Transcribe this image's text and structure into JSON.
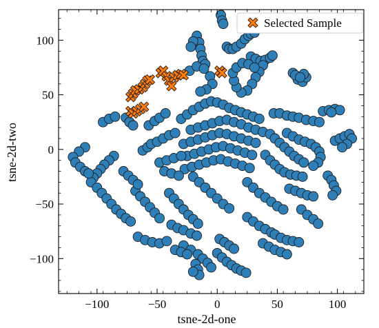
{
  "chart_data": {
    "type": "scatter",
    "title": "",
    "xlabel": "tsne-2d-one",
    "ylabel": "tsne-2d-two",
    "xlim": [
      -132,
      122
    ],
    "ylim": [
      -132,
      128
    ],
    "xticks": [
      -100,
      -50,
      0,
      50,
      100
    ],
    "yticks": [
      -100,
      -50,
      0,
      50,
      100
    ],
    "grid": false,
    "legend_position": "top-right",
    "colors": {
      "background_points": "#2e7fb8",
      "selected": "#ff7f0e",
      "edge": "#1f1f1f"
    },
    "legend": [
      {
        "marker": "x",
        "label": "Selected Sample"
      }
    ],
    "series": [
      {
        "marker": "circle",
        "points": [
          [
            3,
            123
          ],
          [
            4,
            118
          ],
          [
            5,
            115
          ],
          [
            -17,
            104
          ],
          [
            -15,
            98
          ],
          [
            -14,
            92
          ],
          [
            -13,
            86
          ],
          [
            -12,
            81
          ],
          [
            -10,
            78
          ],
          [
            -20,
            99
          ],
          [
            -22,
            94
          ],
          [
            8,
            94
          ],
          [
            10,
            92
          ],
          [
            13,
            92
          ],
          [
            16,
            94
          ],
          [
            20,
            97
          ],
          [
            23,
            101
          ],
          [
            26,
            104
          ],
          [
            28,
            106
          ],
          [
            31,
            107
          ],
          [
            28,
            85
          ],
          [
            32,
            83
          ],
          [
            36,
            81
          ],
          [
            40,
            82
          ],
          [
            44,
            84
          ],
          [
            46,
            86
          ],
          [
            38,
            77
          ],
          [
            35,
            71
          ],
          [
            32,
            66
          ],
          [
            29,
            60
          ],
          [
            25,
            54
          ],
          [
            20,
            52
          ],
          [
            16,
            57
          ],
          [
            14,
            63
          ],
          [
            13,
            70
          ],
          [
            16,
            75
          ],
          [
            21,
            79
          ],
          [
            26,
            78
          ],
          [
            31,
            75
          ],
          [
            63,
            70
          ],
          [
            67,
            64
          ],
          [
            71,
            62
          ],
          [
            74,
            66
          ],
          [
            72,
            69
          ],
          [
            65,
            68
          ],
          [
            69,
            66
          ],
          [
            -23,
            72
          ],
          [
            -17,
            76
          ],
          [
            -11,
            74
          ],
          [
            -6,
            67
          ],
          [
            -4,
            60
          ],
          [
            -9,
            55
          ],
          [
            -14,
            53
          ],
          [
            -76,
            29
          ],
          [
            -73,
            25
          ],
          [
            -70,
            22
          ],
          [
            -62,
            -1
          ],
          [
            -58,
            2
          ],
          [
            -55,
            5
          ],
          [
            -50,
            7
          ],
          [
            -45,
            10
          ],
          [
            -40,
            13
          ],
          [
            -35,
            15
          ],
          [
            -57,
            22
          ],
          [
            -52,
            26
          ],
          [
            -48,
            29
          ],
          [
            -43,
            33
          ],
          [
            -30,
            28
          ],
          [
            -25,
            32
          ],
          [
            -20,
            36
          ],
          [
            -15,
            39
          ],
          [
            -10,
            42
          ],
          [
            -5,
            44
          ],
          [
            0,
            43
          ],
          [
            5,
            41
          ],
          [
            10,
            38
          ],
          [
            15,
            36
          ],
          [
            20,
            34
          ],
          [
            25,
            32
          ],
          [
            30,
            30
          ],
          [
            35,
            28
          ],
          [
            -22,
            18
          ],
          [
            -16,
            20
          ],
          [
            -10,
            22
          ],
          [
            -4,
            24
          ],
          [
            2,
            26
          ],
          [
            8,
            27
          ],
          [
            14,
            25
          ],
          [
            20,
            23
          ],
          [
            26,
            20
          ],
          [
            32,
            18
          ],
          [
            38,
            16
          ],
          [
            44,
            14
          ],
          [
            -28,
            5
          ],
          [
            -22,
            7
          ],
          [
            -16,
            9
          ],
          [
            -10,
            11
          ],
          [
            -4,
            13
          ],
          [
            2,
            15
          ],
          [
            8,
            14
          ],
          [
            14,
            12
          ],
          [
            20,
            10
          ],
          [
            26,
            8
          ],
          [
            32,
            6
          ],
          [
            -25,
            -6
          ],
          [
            -19,
            -4
          ],
          [
            -13,
            -2
          ],
          [
            -7,
            0
          ],
          [
            -1,
            2
          ],
          [
            5,
            3
          ],
          [
            11,
            1
          ],
          [
            17,
            -1
          ],
          [
            23,
            -3
          ],
          [
            29,
            -5
          ],
          [
            -27,
            -18
          ],
          [
            -21,
            -16
          ],
          [
            -15,
            -14
          ],
          [
            -9,
            -12
          ],
          [
            -3,
            -10
          ],
          [
            3,
            -9
          ],
          [
            9,
            -11
          ],
          [
            15,
            -13
          ],
          [
            21,
            -15
          ],
          [
            27,
            -17
          ],
          [
            -48,
            -12
          ],
          [
            -42,
            -10
          ],
          [
            -36,
            -8
          ],
          [
            -30,
            -6
          ],
          [
            -44,
            -20
          ],
          [
            -38,
            -22
          ],
          [
            -32,
            -24
          ],
          [
            47,
            33
          ],
          [
            52,
            33
          ],
          [
            58,
            31
          ],
          [
            63,
            30
          ],
          [
            68,
            29
          ],
          [
            74,
            27
          ],
          [
            80,
            26
          ],
          [
            85,
            25
          ],
          [
            58,
            15
          ],
          [
            63,
            12
          ],
          [
            68,
            9
          ],
          [
            73,
            7
          ],
          [
            78,
            5
          ],
          [
            82,
            2
          ],
          [
            85,
            -2
          ],
          [
            86,
            -7
          ],
          [
            84,
            -12
          ],
          [
            80,
            -15
          ],
          [
            48,
            10
          ],
          [
            52,
            6
          ],
          [
            56,
            2
          ],
          [
            60,
            -2
          ],
          [
            64,
            -6
          ],
          [
            68,
            -9
          ],
          [
            72,
            -12
          ],
          [
            40,
            -5
          ],
          [
            44,
            -10
          ],
          [
            48,
            -14
          ],
          [
            52,
            -18
          ],
          [
            56,
            -21
          ],
          [
            61,
            -23
          ],
          [
            66,
            -24
          ],
          [
            71,
            -25
          ],
          [
            88,
            35
          ],
          [
            93,
            36
          ],
          [
            98,
            37
          ],
          [
            102,
            36
          ],
          [
            95,
            34
          ],
          [
            98,
            8
          ],
          [
            102,
            10
          ],
          [
            106,
            12
          ],
          [
            110,
            14
          ],
          [
            112,
            10
          ],
          [
            108,
            5
          ],
          [
            104,
            2
          ],
          [
            92,
            -24
          ],
          [
            95,
            -28
          ],
          [
            97,
            -33
          ],
          [
            99,
            -38
          ],
          [
            96,
            -42
          ],
          [
            -86,
            -6
          ],
          [
            -90,
            -10
          ],
          [
            -94,
            -14
          ],
          [
            -97,
            -18
          ],
          [
            -100,
            -22
          ],
          [
            -103,
            -26
          ],
          [
            -105,
            -30
          ],
          [
            -110,
            2
          ],
          [
            -115,
            -2
          ],
          [
            -120,
            -7
          ],
          [
            -118,
            -12
          ],
          [
            -114,
            -16
          ],
          [
            -110,
            -20
          ],
          [
            -107,
            -22
          ],
          [
            -100,
            -35
          ],
          [
            -96,
            -40
          ],
          [
            -92,
            -45
          ],
          [
            -88,
            -50
          ],
          [
            -84,
            -55
          ],
          [
            -80,
            -59
          ],
          [
            -76,
            -63
          ],
          [
            -72,
            -66
          ],
          [
            -68,
            -38
          ],
          [
            -64,
            -43
          ],
          [
            -60,
            -48
          ],
          [
            -56,
            -53
          ],
          [
            -52,
            -58
          ],
          [
            -48,
            -63
          ],
          [
            -40,
            -40
          ],
          [
            -36,
            -45
          ],
          [
            -32,
            -50
          ],
          [
            -28,
            -55
          ],
          [
            -24,
            -60
          ],
          [
            -20,
            -64
          ],
          [
            -16,
            -68
          ],
          [
            -20,
            -25
          ],
          [
            -15,
            -30
          ],
          [
            -10,
            -35
          ],
          [
            -5,
            -40
          ],
          [
            0,
            -45
          ],
          [
            5,
            -50
          ],
          [
            10,
            -54
          ],
          [
            25,
            -30
          ],
          [
            30,
            -35
          ],
          [
            35,
            -40
          ],
          [
            40,
            -44
          ],
          [
            45,
            -48
          ],
          [
            50,
            -52
          ],
          [
            55,
            -55
          ],
          [
            -66,
            -80
          ],
          [
            -60,
            -83
          ],
          [
            -54,
            -85
          ],
          [
            -48,
            -86
          ],
          [
            -42,
            -84
          ],
          [
            -38,
            -69
          ],
          [
            -33,
            -72
          ],
          [
            -28,
            -74
          ],
          [
            -22,
            -77
          ],
          [
            -17,
            -79
          ],
          [
            -28,
            -88
          ],
          [
            -22,
            -92
          ],
          [
            -16,
            -96
          ],
          [
            -12,
            -100
          ],
          [
            -8,
            -104
          ],
          [
            -5,
            -108
          ],
          [
            -35,
            -92
          ],
          [
            -30,
            -94
          ],
          [
            -25,
            -96
          ],
          [
            -18,
            -105
          ],
          [
            -16,
            -110
          ],
          [
            -15,
            -115
          ],
          [
            -20,
            -112
          ],
          [
            0,
            -95
          ],
          [
            4,
            -99
          ],
          [
            8,
            -103
          ],
          [
            12,
            -106
          ],
          [
            16,
            -109
          ],
          [
            20,
            -111
          ],
          [
            24,
            -113
          ],
          [
            2,
            -82
          ],
          [
            6,
            -85
          ],
          [
            10,
            -88
          ],
          [
            14,
            -91
          ],
          [
            25,
            -62
          ],
          [
            30,
            -66
          ],
          [
            35,
            -70
          ],
          [
            40,
            -73
          ],
          [
            45,
            -76
          ],
          [
            48,
            -78
          ],
          [
            53,
            -81
          ],
          [
            58,
            -83
          ],
          [
            63,
            -84
          ],
          [
            68,
            -85
          ],
          [
            38,
            -86
          ],
          [
            43,
            -89
          ],
          [
            48,
            -92
          ],
          [
            53,
            -94
          ],
          [
            58,
            -96
          ],
          [
            70,
            -55
          ],
          [
            75,
            -60
          ],
          [
            80,
            -64
          ],
          [
            84,
            -68
          ],
          [
            60,
            -36
          ],
          [
            65,
            -38
          ],
          [
            70,
            -40
          ],
          [
            75,
            -42
          ],
          [
            80,
            -43
          ],
          [
            -95,
            25
          ],
          [
            -90,
            28
          ],
          [
            -85,
            30
          ],
          [
            -78,
            -20
          ],
          [
            -74,
            -24
          ],
          [
            -70,
            -28
          ],
          [
            -66,
            -32
          ]
        ]
      },
      {
        "name": "Selected Sample",
        "marker": "x",
        "points": [
          [
            -72,
            48
          ],
          [
            -70,
            51
          ],
          [
            -68,
            54
          ],
          [
            -65,
            55
          ],
          [
            -62,
            57
          ],
          [
            -60,
            60
          ],
          [
            -58,
            63
          ],
          [
            -56,
            64
          ],
          [
            -72,
            35
          ],
          [
            -70,
            33
          ],
          [
            -67,
            35
          ],
          [
            -64,
            37
          ],
          [
            -61,
            39
          ],
          [
            -47,
            70
          ],
          [
            -45,
            72
          ],
          [
            -42,
            67
          ],
          [
            -40,
            63
          ],
          [
            -38,
            58
          ],
          [
            -36,
            66
          ],
          [
            -33,
            68
          ],
          [
            -30,
            69
          ],
          [
            -28,
            68
          ],
          [
            2,
            72
          ],
          [
            4,
            70
          ]
        ]
      }
    ]
  }
}
